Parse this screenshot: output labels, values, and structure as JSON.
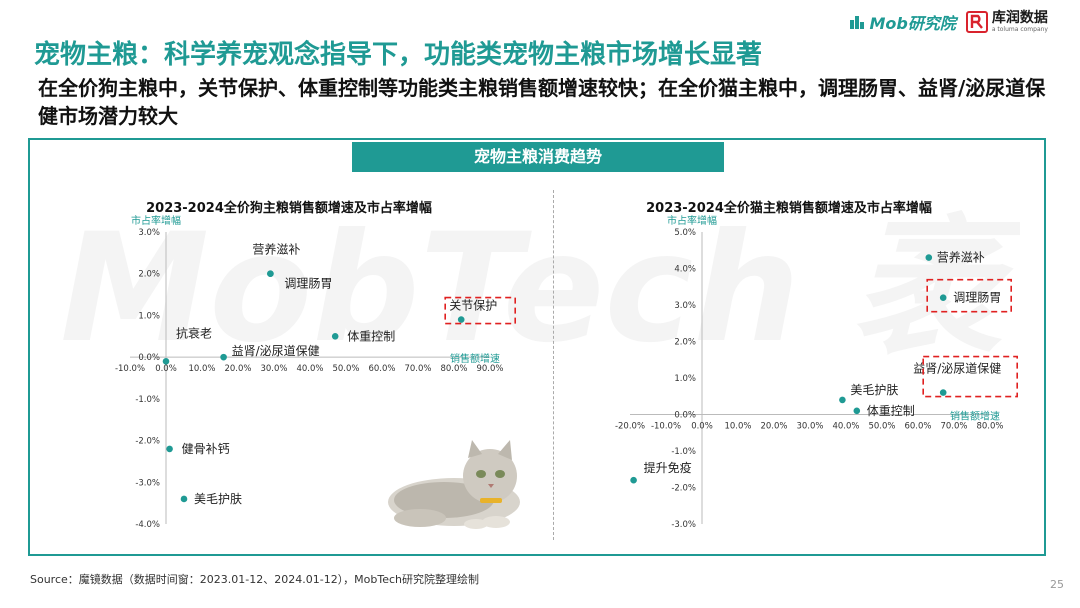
{
  "header": {
    "title": "宠物主粮：科学养宠观念指导下，功能类宠物主粮市场增长显著",
    "subtitle": "在全价狗主粮中，关节保护、体重控制等功能类主粮销售额增速较快；在全价猫主粮中，调理肠胃、益肾/泌尿道保健市场潜力较大",
    "mob_logo": "Mob研究院",
    "rb_logo_name": "库润数据",
    "rb_logo_sub": "a toluma company"
  },
  "panel": {
    "header": "宠物主粮消费趋势",
    "watermark": "MobTech 袤博"
  },
  "chart_data": [
    {
      "type": "scatter",
      "title": "2023-2024全价狗主粮销售额增速及市占率增幅",
      "xlabel": "销售额增速",
      "ylabel": "市占率增幅",
      "xlim": [
        -0.1,
        0.9
      ],
      "ylim": [
        -0.04,
        0.03
      ],
      "xticks": [
        -0.1,
        0,
        0.1,
        0.2,
        0.3,
        0.4,
        0.5,
        0.6,
        0.7,
        0.8,
        0.9
      ],
      "xtick_labels": [
        "-10.0%",
        "0.0%",
        "10.0%",
        "20.0%",
        "30.0%",
        "40.0%",
        "50.0%",
        "60.0%",
        "70.0%",
        "80.0%",
        "90.0%"
      ],
      "yticks": [
        0.03,
        0.02,
        0.01,
        0,
        -0.01,
        -0.02,
        -0.03,
        -0.04
      ],
      "ytick_labels": [
        "3.0%",
        "2.0%",
        "1.0%",
        "0.0%",
        "-1.0%",
        "-2.0%",
        "-3.0%",
        "-4.0%"
      ],
      "points": [
        {
          "label": "营养滋补",
          "x": 0.29,
          "y": 0.02
        },
        {
          "label": "调理肠胃",
          "x": 0.29,
          "y": 0.02
        },
        {
          "label": "关节保护",
          "x": 0.82,
          "y": 0.009
        },
        {
          "label": "体重控制",
          "x": 0.47,
          "y": 0.005
        },
        {
          "label": "抗衰老",
          "x": 0.0,
          "y": -0.001
        },
        {
          "label": "益肾/泌尿道保健",
          "x": 0.16,
          "y": 0.0
        },
        {
          "label": "健骨补钙",
          "x": 0.01,
          "y": -0.022
        },
        {
          "label": "美毛护肤",
          "x": 0.05,
          "y": -0.034
        }
      ],
      "highlighted": [
        "关节保护"
      ]
    },
    {
      "type": "scatter",
      "title": "2023-2024全价猫主粮销售额增速及市占率增幅",
      "xlabel": "销售额增速",
      "ylabel": "市占率增幅",
      "xlim": [
        -0.2,
        0.8
      ],
      "ylim": [
        -0.03,
        0.05
      ],
      "xticks": [
        -0.2,
        -0.1,
        0,
        0.1,
        0.2,
        0.3,
        0.4,
        0.5,
        0.6,
        0.7,
        0.8
      ],
      "xtick_labels": [
        "-20.0%",
        "-10.0%",
        "0.0%",
        "10.0%",
        "20.0%",
        "30.0%",
        "40.0%",
        "50.0%",
        "60.0%",
        "70.0%",
        "80.0%"
      ],
      "yticks": [
        0.05,
        0.04,
        0.03,
        0.02,
        0.01,
        0,
        -0.01,
        -0.02,
        -0.03
      ],
      "ytick_labels": [
        "5.0%",
        "4.0%",
        "3.0%",
        "2.0%",
        "1.0%",
        "0.0%",
        "-1.0%",
        "-2.0%",
        "-3.0%"
      ],
      "points": [
        {
          "label": "营养滋补",
          "x": 0.63,
          "y": 0.043
        },
        {
          "label": "调理肠胃",
          "x": 0.67,
          "y": 0.032
        },
        {
          "label": "益肾/泌尿道保健",
          "x": 0.67,
          "y": 0.006
        },
        {
          "label": "美毛护肤",
          "x": 0.39,
          "y": 0.004
        },
        {
          "label": "体重控制",
          "x": 0.43,
          "y": 0.001
        },
        {
          "label": "提升免疫",
          "x": -0.19,
          "y": -0.018
        }
      ],
      "highlighted": [
        "调理肠胃",
        "益肾/泌尿道保健"
      ]
    }
  ],
  "footer": {
    "source": "Source：魔镜数据（数据时间窗：2023.01-12、2024.01-12），MobTech研究院整理绘制",
    "page_number": "25"
  },
  "colors": {
    "accent": "#1f9a94",
    "point": "#1f9a94",
    "highlight": "#e02020"
  }
}
